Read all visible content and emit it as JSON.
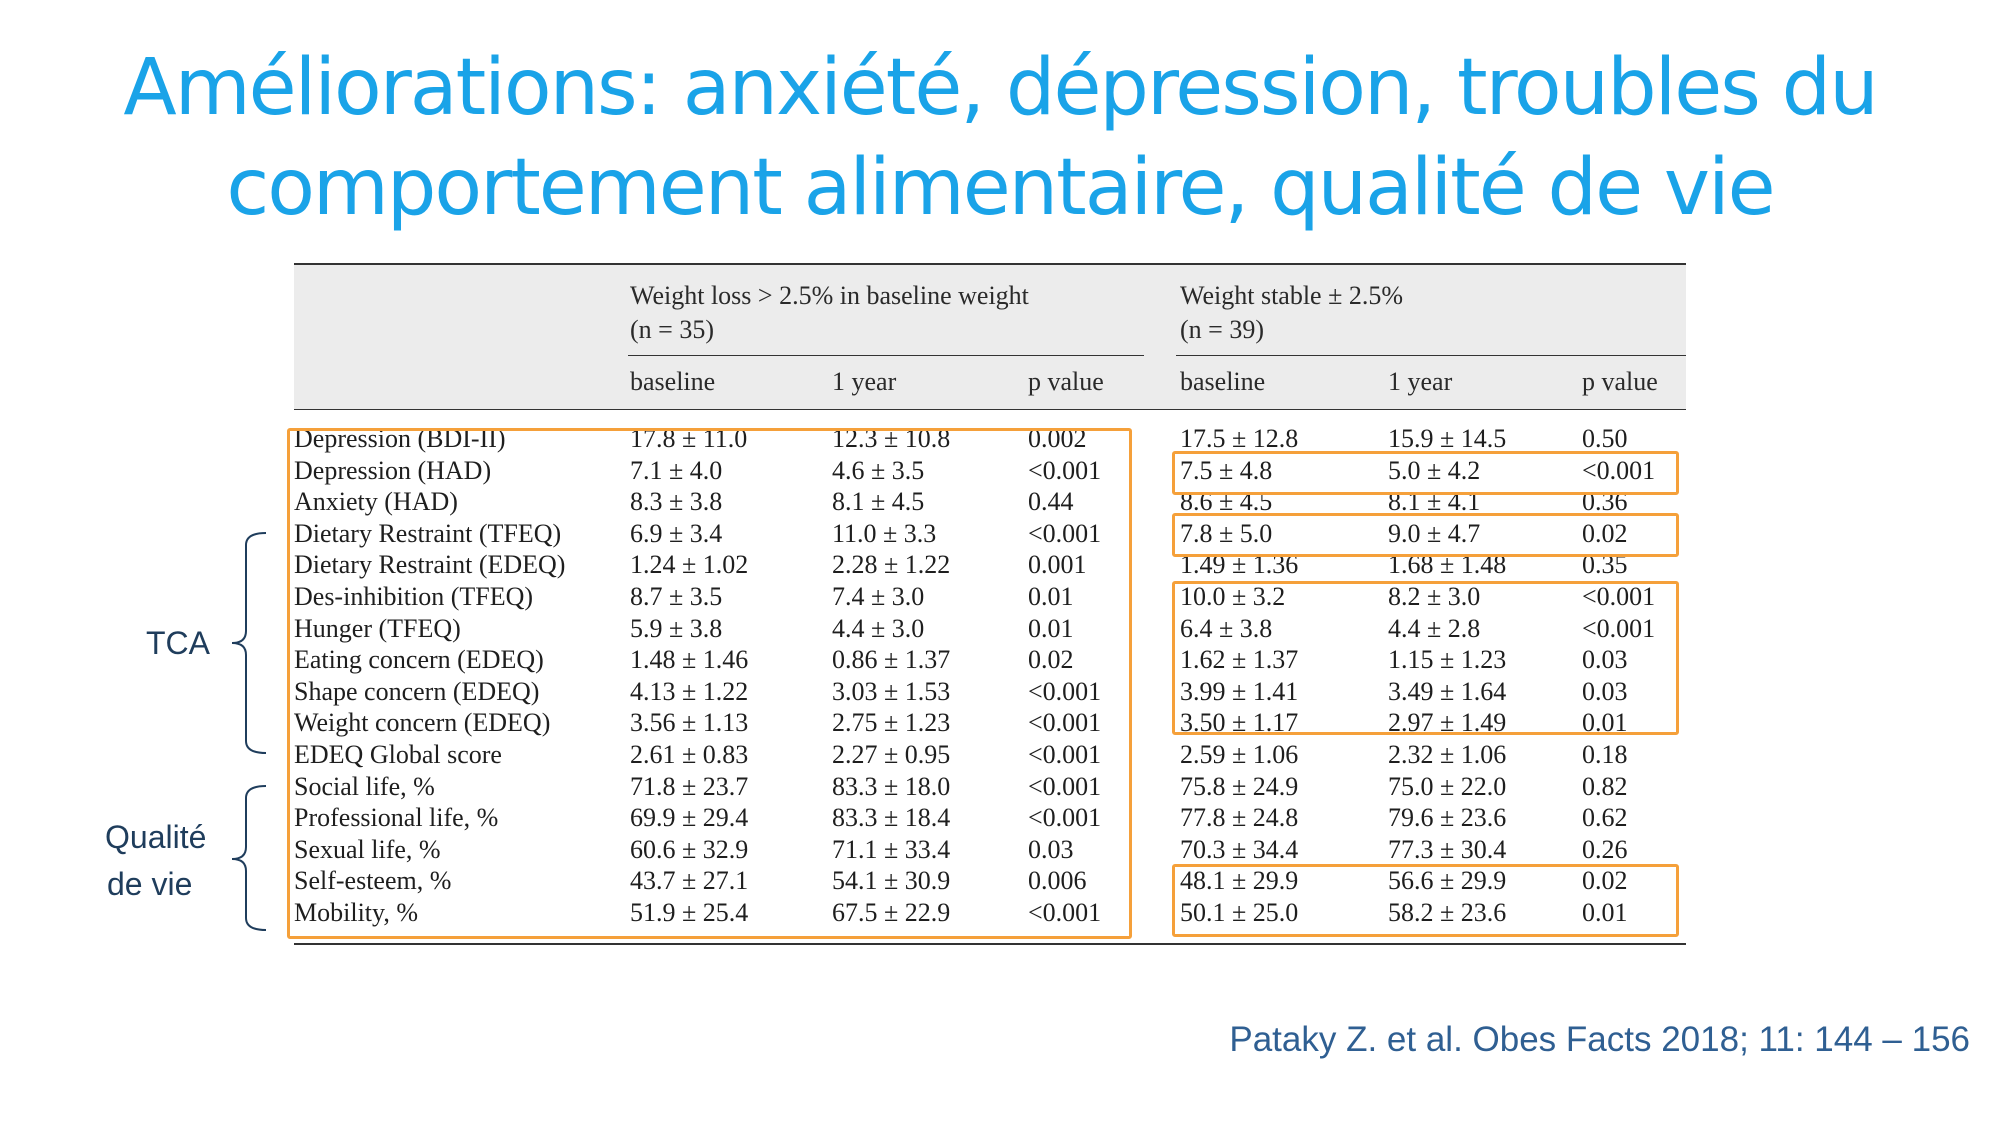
{
  "slide": {
    "title_line1": "Améliorations: anxiété, dépression, troubles du",
    "title_line2": "comportement alimentaire, qualité de vie",
    "citation": "Pataky Z. et al. Obes Facts 2018; 11: 144 – 156"
  },
  "side_labels": {
    "tca": "TCA",
    "qol_line1": "Qualité",
    "qol_line2": "de vie"
  },
  "table": {
    "group1": {
      "line1": "Weight loss > 2.5% in baseline weight",
      "line2": "(n = 35)"
    },
    "group2": {
      "line1": "Weight stable ± 2.5%",
      "line2": "(n = 39)"
    },
    "columns": [
      "baseline",
      "1 year",
      "p value",
      "baseline",
      "1 year",
      "p value"
    ],
    "rows": [
      [
        "Depression (BDI-II)",
        "17.8 ± 11.0",
        "12.3 ± 10.8",
        "0.002",
        "17.5 ± 12.8",
        "15.9 ± 14.5",
        "0.50"
      ],
      [
        "Depression (HAD)",
        "7.1 ± 4.0",
        "4.6 ± 3.5",
        "<0.001",
        "7.5 ± 4.8",
        "5.0 ± 4.2",
        "<0.001"
      ],
      [
        "Anxiety (HAD)",
        "8.3 ± 3.8",
        "8.1 ± 4.5",
        "0.44",
        "8.6 ± 4.5",
        "8.1 ± 4.1",
        "0.36"
      ],
      [
        "Dietary Restraint (TFEQ)",
        "6.9 ± 3.4",
        "11.0 ± 3.3",
        "<0.001",
        "7.8 ± 5.0",
        "9.0 ± 4.7",
        "0.02"
      ],
      [
        "Dietary Restraint (EDEQ)",
        "1.24 ± 1.02",
        "2.28 ± 1.22",
        "0.001",
        "1.49 ± 1.36",
        "1.68 ± 1.48",
        "0.35"
      ],
      [
        "Des-inhibition (TFEQ)",
        "8.7 ± 3.5",
        "7.4 ± 3.0",
        "0.01",
        "10.0 ± 3.2",
        "8.2 ± 3.0",
        "<0.001"
      ],
      [
        "Hunger (TFEQ)",
        "5.9 ± 3.8",
        "4.4 ± 3.0",
        "0.01",
        "6.4 ± 3.8",
        "4.4 ± 2.8",
        "<0.001"
      ],
      [
        "Eating concern (EDEQ)",
        "1.48 ± 1.46",
        "0.86 ± 1.37",
        "0.02",
        "1.62 ± 1.37",
        "1.15 ± 1.23",
        "0.03"
      ],
      [
        "Shape concern (EDEQ)",
        "4.13 ± 1.22",
        "3.03 ± 1.53",
        "<0.001",
        "3.99 ± 1.41",
        "3.49 ± 1.64",
        "0.03"
      ],
      [
        "Weight concern (EDEQ)",
        "3.56 ± 1.13",
        "2.75 ± 1.23",
        "<0.001",
        "3.50 ± 1.17",
        "2.97 ± 1.49",
        "0.01"
      ],
      [
        "EDEQ Global score",
        "2.61 ± 0.83",
        "2.27 ± 0.95",
        "<0.001",
        "2.59 ± 1.06",
        "2.32 ± 1.06",
        "0.18"
      ],
      [
        "Social life, %",
        "71.8 ± 23.7",
        "83.3 ± 18.0",
        "<0.001",
        "75.8 ± 24.9",
        "75.0 ± 22.0",
        "0.82"
      ],
      [
        "Professional life, %",
        "69.9 ± 29.4",
        "83.3 ± 18.4",
        "<0.001",
        "77.8 ± 24.8",
        "79.6 ± 23.6",
        "0.62"
      ],
      [
        "Sexual life, %",
        "60.6 ± 32.9",
        "71.1 ± 33.4",
        "0.03",
        "70.3 ± 34.4",
        "77.3 ± 30.4",
        "0.26"
      ],
      [
        "Self-esteem, %",
        "43.7 ± 27.1",
        "54.1 ± 30.9",
        "0.006",
        "48.1 ± 29.9",
        "56.6 ± 29.9",
        "0.02"
      ],
      [
        "Mobility, %",
        "51.9 ± 25.4",
        "67.5 ± 22.9",
        "<0.001",
        "50.1 ± 25.0",
        "58.2 ± 23.6",
        "0.01"
      ]
    ]
  },
  "colors": {
    "title": "#1aa3e8",
    "highlight_box": "#f5a03a",
    "citation": "#2f5f92",
    "side_label": "#1f3d5c"
  }
}
